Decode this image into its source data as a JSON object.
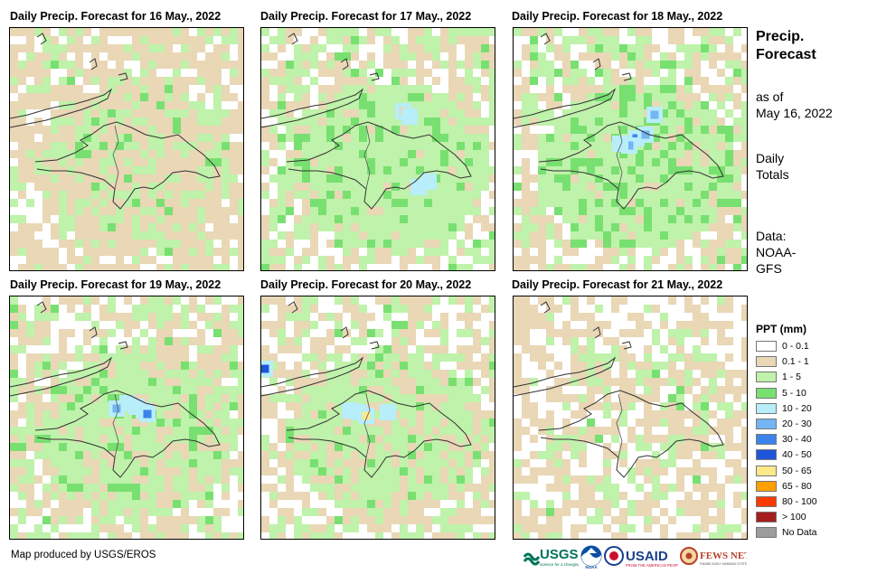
{
  "maps": [
    {
      "title": "Daily Precip. Forecast for 16 May., 2022"
    },
    {
      "title": "Daily Precip. Forecast for 17 May., 2022"
    },
    {
      "title": "Daily Precip. Forecast for 18 May., 2022"
    },
    {
      "title": "Daily Precip. Forecast for 19 May., 2022"
    },
    {
      "title": "Daily Precip. Forecast for 20 May., 2022"
    },
    {
      "title": "Daily Precip. Forecast for 21 May., 2022"
    }
  ],
  "sidebar": {
    "title_line1": "Precip.",
    "title_line2": "Forecast",
    "as_of_line1": "as of",
    "as_of_line2": "May 16, 2022",
    "totals_line1": "Daily",
    "totals_line2": "Totals",
    "data_line1": "Data:",
    "data_line2": "NOAA-",
    "data_line3": "GFS"
  },
  "legend": {
    "title": "PPT (mm)",
    "items": [
      {
        "label": "0 - 0.1",
        "color": "#ffffff"
      },
      {
        "label": "0.1 - 1",
        "color": "#e9d7b6"
      },
      {
        "label": "1 - 5",
        "color": "#bff2aa"
      },
      {
        "label": "5 - 10",
        "color": "#78e070"
      },
      {
        "label": "10 - 20",
        "color": "#b7eefa"
      },
      {
        "label": "20 - 30",
        "color": "#74b4f2"
      },
      {
        "label": "30 - 40",
        "color": "#3d83ec"
      },
      {
        "label": "40 - 50",
        "color": "#1d56d8"
      },
      {
        "label": "50 - 65",
        "color": "#fde98a"
      },
      {
        "label": "65 - 80",
        "color": "#fca100"
      },
      {
        "label": "80 - 100",
        "color": "#fa3a00"
      },
      {
        "label": "> 100",
        "color": "#a51e1e"
      },
      {
        "label": "No Data",
        "color": "#9c9c9c"
      }
    ]
  },
  "credit": "Map produced by USGS/EROS",
  "logos": {
    "usgs": "USGS",
    "usgs_tagline": "science for a changing world",
    "noaa": "NOAA",
    "usaid": "USAID",
    "usaid_tagline": "FROM THE AMERICAN PEOPLE",
    "fewsnet": "FEWS NET",
    "fewsnet_tagline": "FAMINE EARLY WARNING SYSTEMS NETWORK"
  }
}
